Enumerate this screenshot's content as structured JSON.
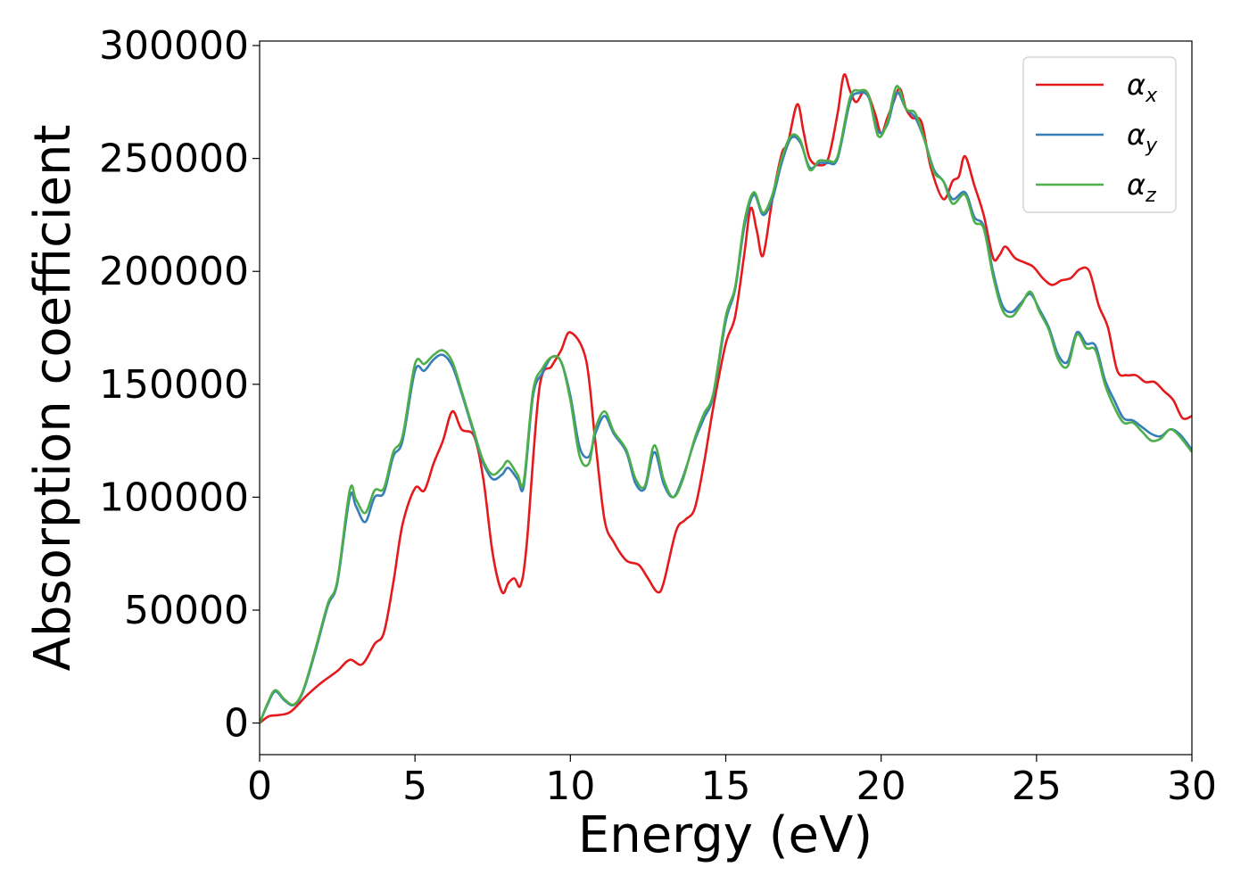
{
  "chart_data": {
    "type": "line",
    "title": "",
    "xlabel": "Energy (eV)",
    "ylabel": "Absorption coefficient",
    "xlim": [
      0,
      30
    ],
    "ylim": [
      -14000,
      302000
    ],
    "xticks": [
      0,
      5,
      10,
      15,
      20,
      25,
      30
    ],
    "xtick_labels": [
      "0",
      "5",
      "10",
      "15",
      "20",
      "25",
      "30"
    ],
    "yticks": [
      0,
      50000,
      100000,
      150000,
      200000,
      250000,
      300000
    ],
    "ytick_labels": [
      "0",
      "50000",
      "100000",
      "150000",
      "200000",
      "250000",
      "300000"
    ],
    "grid": false,
    "legend_position": "top-right",
    "series": [
      {
        "name": "αx",
        "name_base": "α",
        "name_sub": "x",
        "color": "#e41a1c",
        "x": [
          0,
          0.3,
          0.6,
          1.0,
          1.5,
          2.0,
          2.5,
          2.9,
          3.3,
          3.7,
          4.0,
          4.3,
          4.6,
          5.0,
          5.3,
          5.6,
          5.9,
          6.2,
          6.5,
          6.9,
          7.2,
          7.5,
          7.8,
          8.0,
          8.2,
          8.4,
          8.6,
          9.0,
          9.4,
          9.7,
          10.0,
          10.5,
          10.8,
          11.1,
          11.4,
          11.8,
          12.2,
          12.5,
          12.8,
          13.0,
          13.4,
          13.7,
          14.0,
          14.3,
          14.6,
          15.0,
          15.3,
          15.6,
          15.8,
          16.0,
          16.2,
          16.5,
          16.8,
          17.0,
          17.3,
          17.5,
          17.7,
          18.0,
          18.3,
          18.6,
          18.8,
          19.0,
          19.2,
          19.5,
          19.8,
          20.0,
          20.2,
          20.4,
          20.6,
          20.8,
          21.0,
          21.3,
          21.6,
          22.0,
          22.3,
          22.5,
          22.7,
          23.0,
          23.3,
          23.6,
          23.8,
          24.0,
          24.3,
          24.6,
          24.9,
          25.2,
          25.5,
          25.8,
          26.1,
          26.4,
          26.7,
          27.0,
          27.3,
          27.6,
          27.9,
          28.2,
          28.5,
          28.8,
          29.1,
          29.4,
          29.7,
          30.0
        ],
        "y": [
          0,
          3000,
          3500,
          5000,
          12000,
          18000,
          23000,
          28000,
          26000,
          35000,
          40000,
          62000,
          88000,
          104000,
          103000,
          115000,
          125000,
          138000,
          130000,
          127000,
          108000,
          75000,
          58000,
          62000,
          64000,
          61000,
          80000,
          148000,
          158000,
          165000,
          173000,
          161000,
          125000,
          90000,
          80000,
          72000,
          70000,
          64000,
          58000,
          62000,
          85000,
          90000,
          95000,
          115000,
          140000,
          168000,
          180000,
          208000,
          228000,
          218000,
          207000,
          232000,
          252000,
          257000,
          274000,
          262000,
          250000,
          247000,
          250000,
          270000,
          287000,
          280000,
          275000,
          280000,
          270000,
          261000,
          268000,
          275000,
          281000,
          272000,
          268000,
          266000,
          246000,
          232000,
          240000,
          242000,
          251000,
          238000,
          225000,
          206000,
          207000,
          211000,
          206000,
          204000,
          202000,
          197000,
          194000,
          196000,
          197000,
          201000,
          200000,
          185000,
          175000,
          156000,
          154000,
          154000,
          151000,
          151000,
          147000,
          143000,
          135000,
          136000
        ]
      },
      {
        "name": "αy",
        "name_base": "α",
        "name_sub": "y",
        "color": "#377eb8",
        "x": [
          0,
          0.25,
          0.5,
          0.8,
          1.1,
          1.4,
          1.8,
          2.2,
          2.5,
          2.9,
          3.1,
          3.4,
          3.7,
          4.0,
          4.3,
          4.6,
          5.0,
          5.3,
          5.6,
          5.9,
          6.2,
          6.5,
          6.9,
          7.2,
          7.5,
          7.8,
          8.0,
          8.3,
          8.5,
          8.8,
          9.1,
          9.4,
          9.7,
          10.0,
          10.3,
          10.6,
          10.8,
          11.1,
          11.4,
          11.8,
          12.1,
          12.4,
          12.7,
          13.0,
          13.3,
          13.6,
          14.0,
          14.3,
          14.6,
          15.0,
          15.3,
          15.6,
          15.9,
          16.2,
          16.5,
          16.8,
          17.1,
          17.4,
          17.7,
          18.0,
          18.3,
          18.6,
          19.0,
          19.3,
          19.6,
          19.9,
          20.2,
          20.5,
          20.8,
          21.1,
          21.4,
          21.7,
          22.0,
          22.3,
          22.7,
          23.0,
          23.3,
          23.6,
          23.9,
          24.2,
          24.5,
          24.8,
          25.1,
          25.4,
          25.7,
          26.0,
          26.3,
          26.6,
          26.9,
          27.2,
          27.5,
          27.8,
          28.1,
          28.4,
          28.7,
          29.0,
          29.3,
          29.6,
          30.0
        ],
        "y": [
          0,
          8000,
          14000,
          10000,
          8000,
          14000,
          32000,
          52000,
          62000,
          100000,
          96000,
          89000,
          100000,
          102000,
          118000,
          125000,
          156000,
          156000,
          161000,
          163000,
          158000,
          146000,
          128000,
          115000,
          108000,
          110000,
          113000,
          108000,
          105000,
          145000,
          155000,
          162000,
          160000,
          145000,
          122000,
          118000,
          128000,
          136000,
          128000,
          120000,
          106000,
          104000,
          120000,
          106000,
          100000,
          108000,
          125000,
          135000,
          145000,
          178000,
          192000,
          220000,
          234000,
          225000,
          232000,
          248000,
          259000,
          257000,
          246000,
          248000,
          248000,
          250000,
          275000,
          279000,
          277000,
          262000,
          265000,
          279000,
          272000,
          268000,
          258000,
          245000,
          240000,
          232000,
          235000,
          224000,
          220000,
          200000,
          185000,
          182000,
          186000,
          190000,
          183000,
          175000,
          163000,
          160000,
          173000,
          168000,
          167000,
          152000,
          143000,
          135000,
          134000,
          131000,
          128000,
          127000,
          130000,
          128000,
          121000
        ]
      },
      {
        "name": "αz",
        "name_base": "α",
        "name_sub": "z",
        "color": "#4daf4a",
        "x": [
          0,
          0.25,
          0.5,
          0.8,
          1.1,
          1.4,
          1.8,
          2.2,
          2.5,
          2.9,
          3.1,
          3.4,
          3.7,
          4.0,
          4.3,
          4.6,
          5.0,
          5.3,
          5.6,
          5.9,
          6.2,
          6.5,
          6.9,
          7.2,
          7.5,
          7.8,
          8.0,
          8.3,
          8.5,
          8.8,
          9.1,
          9.4,
          9.7,
          10.0,
          10.3,
          10.6,
          10.8,
          11.1,
          11.4,
          11.8,
          12.1,
          12.4,
          12.7,
          13.0,
          13.3,
          13.6,
          14.0,
          14.3,
          14.6,
          15.0,
          15.3,
          15.6,
          15.9,
          16.2,
          16.5,
          16.8,
          17.1,
          17.4,
          17.7,
          18.0,
          18.3,
          18.6,
          19.0,
          19.3,
          19.6,
          19.9,
          20.2,
          20.5,
          20.8,
          21.1,
          21.4,
          21.7,
          22.0,
          22.3,
          22.7,
          23.0,
          23.3,
          23.6,
          23.9,
          24.2,
          24.5,
          24.8,
          25.1,
          25.4,
          25.7,
          26.0,
          26.3,
          26.6,
          26.9,
          27.2,
          27.5,
          27.8,
          28.1,
          28.4,
          28.7,
          29.0,
          29.3,
          29.6,
          30.0
        ],
        "y": [
          0,
          8500,
          14500,
          10500,
          8200,
          14500,
          33000,
          53000,
          63000,
          103000,
          99000,
          93000,
          103000,
          104000,
          120000,
          127000,
          159000,
          159000,
          163000,
          165000,
          160000,
          147000,
          129000,
          116000,
          110000,
          113000,
          116000,
          110000,
          107000,
          147000,
          157000,
          162000,
          160000,
          143000,
          118000,
          115000,
          130000,
          138000,
          129000,
          121000,
          108000,
          105000,
          123000,
          108000,
          100000,
          107000,
          126000,
          137000,
          146000,
          180000,
          193000,
          222000,
          235000,
          226000,
          234000,
          250000,
          260000,
          258000,
          245000,
          249000,
          249000,
          251000,
          277000,
          280000,
          278000,
          260000,
          266000,
          282000,
          272000,
          270000,
          258000,
          244000,
          240000,
          230000,
          234000,
          222000,
          219000,
          198000,
          183000,
          180000,
          185000,
          191000,
          182000,
          174000,
          161000,
          158000,
          172000,
          166000,
          165000,
          150000,
          140000,
          133000,
          133000,
          129000,
          125000,
          126000,
          130000,
          127000,
          120000
        ]
      }
    ]
  }
}
